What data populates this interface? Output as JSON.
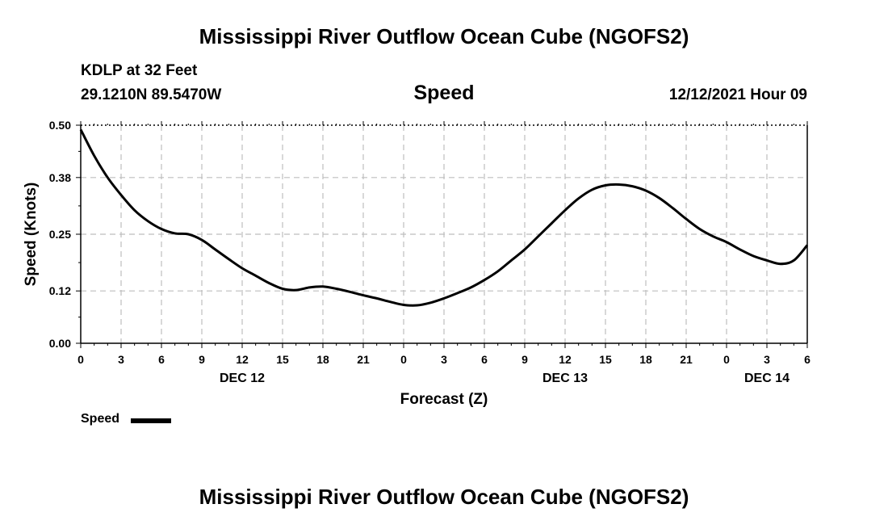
{
  "header": {
    "title": "Mississippi River Outflow Ocean Cube (NGOFS2)",
    "station": "KDLP at 32 Feet",
    "coords": "29.1210N  89.5470W",
    "variable": "Speed",
    "datetime": "12/12/2021 Hour 09"
  },
  "footer": {
    "title": "Mississippi River Outflow Ocean Cube (NGOFS2)"
  },
  "legend": {
    "label": "Speed"
  },
  "chart_data": {
    "type": "line",
    "title": "Speed",
    "xlabel": "Forecast (Z)",
    "ylabel": "Speed (Knots)",
    "ylim": [
      0,
      0.5
    ],
    "yticks": [
      "0.00",
      "0.12",
      "0.25",
      "0.38",
      "0.50"
    ],
    "xlim": [
      0,
      54
    ],
    "xtick_labels": [
      "0",
      "3",
      "6",
      "9",
      "12",
      "15",
      "18",
      "21",
      "0",
      "3",
      "6",
      "9",
      "12",
      "15",
      "18",
      "21",
      "0",
      "3",
      "6"
    ],
    "day_labels": [
      {
        "label": "DEC 12",
        "hour": 12
      },
      {
        "label": "DEC 13",
        "hour": 36
      },
      {
        "label": "DEC 14",
        "hour": 51
      }
    ],
    "grid": true,
    "legend_position": "bottom-left",
    "series": [
      {
        "name": "Speed",
        "color": "#000000",
        "x": [
          0,
          1,
          2,
          3,
          4,
          5,
          6,
          7,
          8,
          9,
          10,
          11,
          12,
          13,
          14,
          15,
          16,
          17,
          18,
          19,
          20,
          21,
          22,
          23,
          24,
          25,
          26,
          27,
          28,
          29,
          30,
          31,
          32,
          33,
          34,
          35,
          36,
          37,
          38,
          39,
          40,
          41,
          42,
          43,
          44,
          45,
          46,
          47,
          48,
          49,
          50,
          51,
          52,
          53,
          54
        ],
        "y": [
          0.49,
          0.43,
          0.38,
          0.34,
          0.305,
          0.28,
          0.262,
          0.252,
          0.25,
          0.237,
          0.215,
          0.193,
          0.172,
          0.155,
          0.138,
          0.125,
          0.122,
          0.128,
          0.13,
          0.125,
          0.118,
          0.11,
          0.103,
          0.095,
          0.088,
          0.087,
          0.093,
          0.103,
          0.115,
          0.128,
          0.145,
          0.165,
          0.19,
          0.215,
          0.245,
          0.275,
          0.305,
          0.332,
          0.352,
          0.362,
          0.364,
          0.36,
          0.35,
          0.333,
          0.31,
          0.285,
          0.262,
          0.245,
          0.232,
          0.215,
          0.2,
          0.19,
          0.182,
          0.19,
          0.225
        ]
      }
    ]
  }
}
